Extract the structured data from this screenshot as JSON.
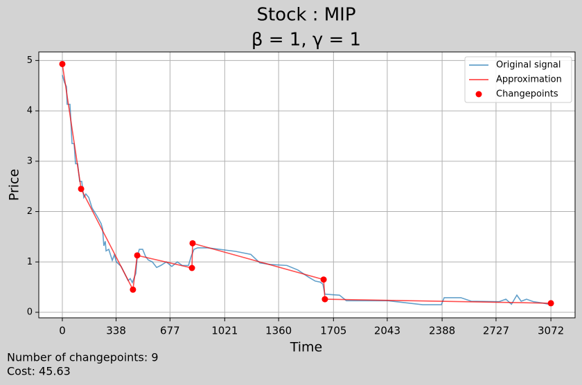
{
  "chart_data": {
    "type": "line",
    "title": "Stock : MIP",
    "subtitle": "β = 1, γ = 1",
    "x_label": "Time",
    "y_label": "Price",
    "xlim": [
      -148,
      3224
    ],
    "ylim": [
      -0.11,
      5.17
    ],
    "xticks": [
      0,
      338,
      677,
      1021,
      1360,
      1705,
      2043,
      2388,
      2727,
      3072
    ],
    "yticks": [
      0,
      1,
      2,
      3,
      4,
      5
    ],
    "grid": true,
    "legend": "upper right",
    "series": [
      {
        "name": "Original signal",
        "type": "line",
        "color": "#1f77b4",
        "x": [
          0,
          13,
          26,
          30,
          48,
          61,
          74,
          83,
          96,
          109,
          122,
          135,
          148,
          166,
          187,
          218,
          244,
          253,
          261,
          270,
          275,
          292,
          314,
          327,
          340,
          370,
          392,
          414,
          427,
          440,
          462,
          471,
          484,
          505,
          523,
          540,
          566,
          593,
          619,
          654,
          688,
          723,
          754,
          793,
          810,
          828,
          850,
          915,
          1089,
          1185,
          1242,
          1307,
          1412,
          1481,
          1547,
          1590,
          1621,
          1638,
          1651,
          1743,
          1786,
          2048,
          2266,
          2383,
          2401,
          2506,
          2571,
          2745,
          2789,
          2824,
          2858,
          2885,
          2919,
          2963,
          3028,
          3072
        ],
        "values": [
          4.71,
          4.57,
          4.48,
          4.13,
          4.13,
          3.35,
          3.35,
          2.95,
          2.95,
          2.6,
          2.6,
          2.28,
          2.35,
          2.28,
          2.07,
          1.91,
          1.76,
          1.66,
          1.32,
          1.41,
          1.22,
          1.25,
          1.03,
          1.14,
          1.0,
          0.91,
          0.77,
          0.63,
          0.67,
          0.59,
          0.77,
          1.11,
          1.25,
          1.25,
          1.11,
          1.04,
          1.0,
          0.89,
          0.93,
          1.0,
          0.91,
          1.0,
          0.93,
          0.93,
          1.11,
          1.25,
          1.28,
          1.28,
          1.21,
          1.15,
          0.98,
          0.95,
          0.93,
          0.84,
          0.7,
          0.62,
          0.6,
          0.56,
          0.36,
          0.34,
          0.23,
          0.23,
          0.15,
          0.15,
          0.29,
          0.29,
          0.22,
          0.21,
          0.26,
          0.16,
          0.34,
          0.22,
          0.26,
          0.21,
          0.18,
          0.15
        ]
      },
      {
        "name": "Approximation",
        "type": "line",
        "color": "#ff0000",
        "x": [
          0,
          118,
          444,
          471,
          815,
          819,
          1643,
          1651,
          3072
        ],
        "values": [
          4.93,
          2.45,
          0.45,
          1.13,
          0.88,
          1.37,
          0.65,
          0.26,
          0.18
        ]
      },
      {
        "name": "Changepoints",
        "type": "scatter",
        "color": "#ff0000",
        "x": [
          0,
          118,
          444,
          471,
          815,
          819,
          1643,
          1651,
          3072
        ],
        "values": [
          4.93,
          2.45,
          0.45,
          1.13,
          0.88,
          1.37,
          0.65,
          0.26,
          0.18
        ]
      }
    ],
    "notes": [
      "Number of changepoints: 9",
      "Cost: 45.63"
    ]
  }
}
